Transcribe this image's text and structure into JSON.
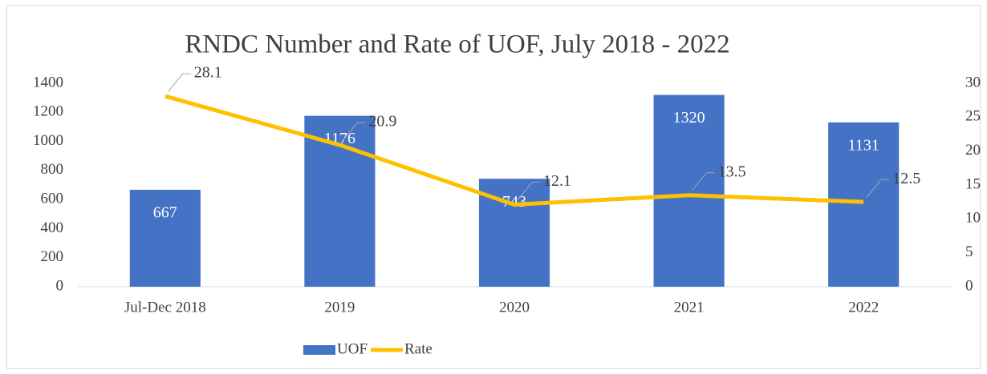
{
  "chart_data": {
    "type": "bar_line",
    "title": "RNDC Number and Rate of UOF, July 2018 - 2022",
    "categories": [
      "Jul-Dec 2018",
      "2019",
      "2020",
      "2021",
      "2022"
    ],
    "series": [
      {
        "name": "UOF",
        "color": "#4472c4",
        "type": "bar",
        "values": [
          667,
          1176,
          743,
          1320,
          1131
        ]
      },
      {
        "name": "Rate",
        "color": "#ffc000",
        "type": "line",
        "axis": "y2",
        "values": [
          28.1,
          20.9,
          12.1,
          13.5,
          12.5
        ]
      }
    ],
    "ylim": [
      0,
      1400
    ],
    "yticks": [
      0,
      200,
      400,
      600,
      800,
      1000,
      1200,
      1400
    ],
    "y2lim": [
      0,
      30
    ],
    "y2ticks": [
      0,
      5,
      10,
      15,
      20,
      25,
      30
    ],
    "legend": "bottom",
    "grid": false
  }
}
